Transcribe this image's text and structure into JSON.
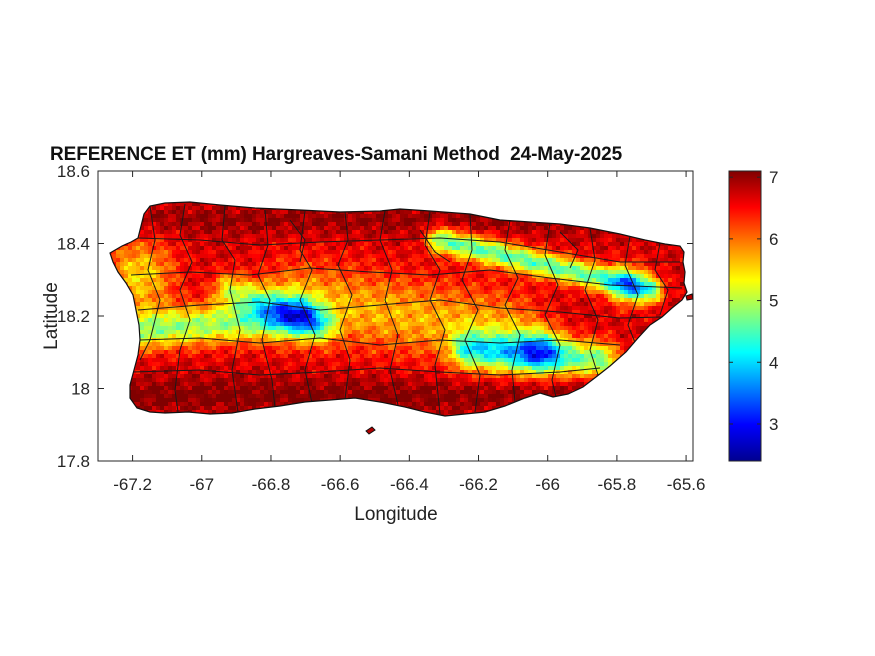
{
  "chart_data": {
    "type": "heatmap",
    "title": "REFERENCE ET (mm) Hargreaves-Samani Method  24-May-2025",
    "xlabel": "Longitude",
    "ylabel": "Latitude",
    "xlim": [
      -67.3,
      -65.58
    ],
    "ylim": [
      17.8,
      18.6
    ],
    "x_ticks": [
      -67.2,
      -67,
      -66.8,
      -66.6,
      -66.4,
      -66.2,
      -66,
      -65.8,
      -65.6
    ],
    "x_tick_labels": [
      "-67.2",
      "-67",
      "-66.8",
      "-66.6",
      "-66.4",
      "-66.2",
      "-66",
      "-65.8",
      "-65.6"
    ],
    "y_ticks": [
      17.8,
      18,
      18.2,
      18.4,
      18.6
    ],
    "y_tick_labels": [
      "17.8",
      "18",
      "18.2",
      "18.4",
      "18.6"
    ],
    "colorbar": {
      "colormap": "jet",
      "range": [
        2.4,
        7.1
      ],
      "ticks": [
        3,
        4,
        5,
        6,
        7
      ],
      "tick_labels": [
        "3",
        "4",
        "5",
        "6",
        "7"
      ]
    },
    "region": "Puerto Rico (municipality boundaries)",
    "grid": false
  }
}
